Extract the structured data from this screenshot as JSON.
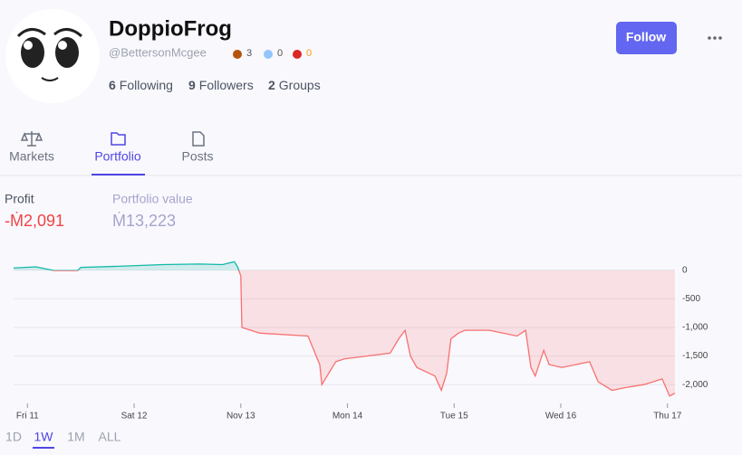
{
  "profile": {
    "name": "DoppioFrog",
    "handle": "@BettersonMcgee",
    "badges": [
      3,
      0,
      0
    ],
    "following": {
      "count": 6,
      "label": "Following"
    },
    "followers": {
      "count": 9,
      "label": "Followers"
    },
    "groups": {
      "count": 2,
      "label": "Groups"
    },
    "follow_button": "Follow"
  },
  "tabs": [
    "Markets",
    "Portfolio",
    "Posts"
  ],
  "stats": {
    "profit": {
      "label": "Profit",
      "value": "-Ṁ2,091"
    },
    "portfolio_value": {
      "label": "Portfolio value",
      "value": "Ṁ13,223"
    }
  },
  "chart_data": {
    "type": "area",
    "x": [
      10.87,
      11.08,
      11.25,
      11.47,
      11.5,
      11.85,
      12.27,
      12.61,
      12.83,
      12.94,
      12.97,
      13.0,
      13.01,
      13.18,
      13.63,
      13.74,
      13.76,
      13.89,
      13.97,
      14.4,
      14.48,
      14.54,
      14.59,
      14.65,
      14.82,
      14.88,
      14.93,
      14.97,
      15.04,
      15.1,
      15.33,
      15.59,
      15.67,
      15.72,
      15.76,
      15.84,
      15.89,
      16.01,
      16.27,
      16.35,
      16.48,
      16.61,
      16.78,
      16.95,
      17.02,
      17.07
    ],
    "values": [
      40,
      60,
      -5,
      -5,
      50,
      70,
      100,
      110,
      100,
      150,
      60,
      -100,
      -1000,
      -1100,
      -1150,
      -1650,
      -2000,
      -1600,
      -1550,
      -1450,
      -1200,
      -1050,
      -1500,
      -1700,
      -1850,
      -2100,
      -1800,
      -1200,
      -1100,
      -1050,
      -1050,
      -1150,
      -1050,
      -1700,
      -1850,
      -1400,
      -1650,
      -1700,
      -1600,
      -1950,
      -2100,
      -2050,
      -2000,
      -1900,
      -2200,
      -2150
    ],
    "color_above": "#14b8a6",
    "color_below": "#f87171",
    "xlim": [
      10.87,
      17.07
    ],
    "xticks": [
      {
        "value": 11,
        "label": "Fri 11"
      },
      {
        "value": 12,
        "label": "Sat 12"
      },
      {
        "value": 13,
        "label": "Nov 13"
      },
      {
        "value": 14,
        "label": "Mon 14"
      },
      {
        "value": 15,
        "label": "Tue 15"
      },
      {
        "value": 16,
        "label": "Wed 16"
      },
      {
        "value": 17,
        "label": "Thu 17"
      }
    ],
    "ylim": [
      -2250,
      250
    ],
    "yticks": [
      0,
      -500,
      {
        "value": -1000,
        "label": "-1,000"
      },
      {
        "value": -1500,
        "label": "-1,500"
      },
      {
        "value": -2000,
        "label": "-2,000"
      }
    ],
    "grid": true
  },
  "ranges": [
    "1D",
    "1W",
    "1M",
    "ALL"
  ],
  "selected_range": "1W",
  "selected_tab": "Portfolio"
}
